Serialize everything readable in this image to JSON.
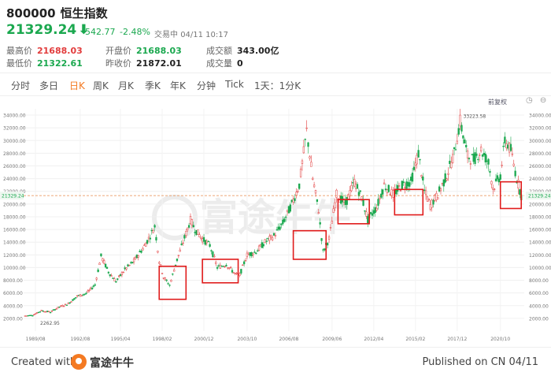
{
  "header": {
    "code": "800000",
    "name": "恒生指数",
    "price": "21329.24",
    "price_arrow": "⬇",
    "change": "-542.77",
    "change_pct": "-2.48%",
    "status": "交易中",
    "datetime": "04/11 10:17",
    "stats": [
      {
        "label": "最高价",
        "value": "21688.03"
      },
      {
        "label": "最低价",
        "value": "21322.61"
      },
      {
        "label": "开盘价",
        "value": "21688.03"
      },
      {
        "label": "昨收价",
        "value": "21872.01"
      },
      {
        "label": "成交额",
        "value": "343.00亿"
      },
      {
        "label": "成交量",
        "value": "0"
      }
    ]
  },
  "tabs": [
    {
      "label": "分时",
      "active": false
    },
    {
      "label": "多日",
      "active": false
    },
    {
      "label": "日K",
      "active": true
    },
    {
      "label": "周K",
      "active": false
    },
    {
      "label": "月K",
      "active": false
    },
    {
      "label": "季K",
      "active": false
    },
    {
      "label": "年K",
      "active": false
    },
    {
      "label": "分钟",
      "active": false
    },
    {
      "label": "Tick",
      "active": false
    },
    {
      "label": "1天：1分K",
      "active": false
    }
  ],
  "toolbar": {
    "scale_label": "前复权",
    "tool_icons": "◷ ⊖ ↻"
  },
  "footer": {
    "created_with": "Created with",
    "brand": "富途牛牛",
    "published": "Published on CN 04/11"
  },
  "colors": {
    "up": "#e23d3d",
    "down": "#1ba84f",
    "accent": "#f47a22",
    "highlight_box": "#e01b1b",
    "price_line": "#e78a4a",
    "watermark": "#ececec"
  },
  "watermark": "富途牛牛",
  "chart_data": {
    "type": "candlestick",
    "ylim": [
      0,
      35000
    ],
    "y_ticks": [
      2000,
      4000,
      6000,
      8000,
      10000,
      12000,
      14000,
      16000,
      18000,
      20000,
      22000,
      24000,
      26000,
      28000,
      30000,
      32000,
      34000
    ],
    "y_tick_labels": [
      "2000.00",
      "4000.00",
      "6000.00",
      "8000.00",
      "10000.00",
      "12000.00",
      "14000.00",
      "16000.00",
      "18000.00",
      "20000.00",
      "22000.00",
      "24000.00",
      "26000.00",
      "28000.00",
      "30000.00",
      "32000.00",
      "34000.00"
    ],
    "x_tick_labels": [
      "1989/08",
      "1992/08",
      "1995/04",
      "1998/02",
      "2000/12",
      "2003/10",
      "2006/08",
      "2009/06",
      "2012/04",
      "2015/02",
      "2017/12",
      "2020/10"
    ],
    "x_tick_years": [
      1989.6,
      1992.6,
      1995.3,
      1998.1,
      2000.9,
      2003.8,
      2006.6,
      2009.5,
      2012.3,
      2015.1,
      2017.9,
      2020.8
    ],
    "x_range": [
      1988.8,
      2022.4
    ],
    "current_price": 21329.24,
    "current_price_label": "21329.24",
    "annotations": [
      {
        "text": "33223.58",
        "x": 2018.1,
        "y": 33223.58
      },
      {
        "text": "2262.95",
        "x": 1989.7,
        "y": 2262.95
      }
    ],
    "series": [
      {
        "x": [
          1988.9,
          1989.4,
          1990.0,
          1990.6,
          1991.2,
          1991.8,
          1992.4,
          1993.0,
          1993.6,
          1994.0,
          1994.5,
          1995.0,
          1995.6,
          1996.2,
          1996.8,
          1997.3,
          1997.6,
          1997.9,
          1998.2,
          1998.6,
          1999.0,
          1999.5,
          2000.0,
          2000.3,
          2000.8,
          2001.3,
          2001.8,
          2002.4,
          2003.0,
          2003.3,
          2003.8,
          2004.4,
          2005.0,
          2005.6,
          2006.2,
          2006.8,
          2007.3,
          2007.8,
          2008.2,
          2008.6,
          2008.9,
          2009.3,
          2009.8,
          2010.4,
          2011.0,
          2011.5,
          2011.9,
          2012.5,
          2013.0,
          2013.6,
          2014.2,
          2014.8,
          2015.3,
          2015.7,
          2016.1,
          2016.6,
          2017.2,
          2017.7,
          2018.1,
          2018.6,
          2019.0,
          2019.5,
          2020.0,
          2020.3,
          2020.8,
          2021.1,
          2021.5,
          2021.9,
          2022.2
        ],
        "y": [
          2400,
          2500,
          3200,
          3000,
          3800,
          4300,
          5500,
          5900,
          7300,
          11800,
          9300,
          7800,
          9700,
          11000,
          13000,
          15000,
          16500,
          11000,
          8500,
          7200,
          10500,
          14000,
          17500,
          16000,
          14500,
          13500,
          10000,
          10500,
          9000,
          8800,
          12000,
          12500,
          14000,
          15000,
          17000,
          20000,
          23000,
          31500,
          24000,
          19000,
          12500,
          14500,
          21500,
          20000,
          23500,
          21000,
          17500,
          19500,
          23000,
          21500,
          23000,
          23500,
          28000,
          22000,
          19800,
          21500,
          24500,
          28000,
          33000,
          27500,
          27000,
          28500,
          26500,
          22500,
          24500,
          30000,
          28500,
          24000,
          21329
        ]
      }
    ],
    "highlight_boxes": [
      {
        "x0": 1997.9,
        "x1": 1999.7,
        "y0": 5000,
        "y1": 10200
      },
      {
        "x0": 2000.8,
        "x1": 2003.2,
        "y0": 7600,
        "y1": 11300
      },
      {
        "x0": 2006.9,
        "x1": 2009.1,
        "y0": 11300,
        "y1": 15800
      },
      {
        "x0": 2009.9,
        "x1": 2012.0,
        "y0": 16900,
        "y1": 20700
      },
      {
        "x0": 2013.7,
        "x1": 2015.6,
        "y0": 18300,
        "y1": 22300
      },
      {
        "x0": 2020.8,
        "x1": 2022.2,
        "y0": 19300,
        "y1": 23500
      }
    ]
  }
}
